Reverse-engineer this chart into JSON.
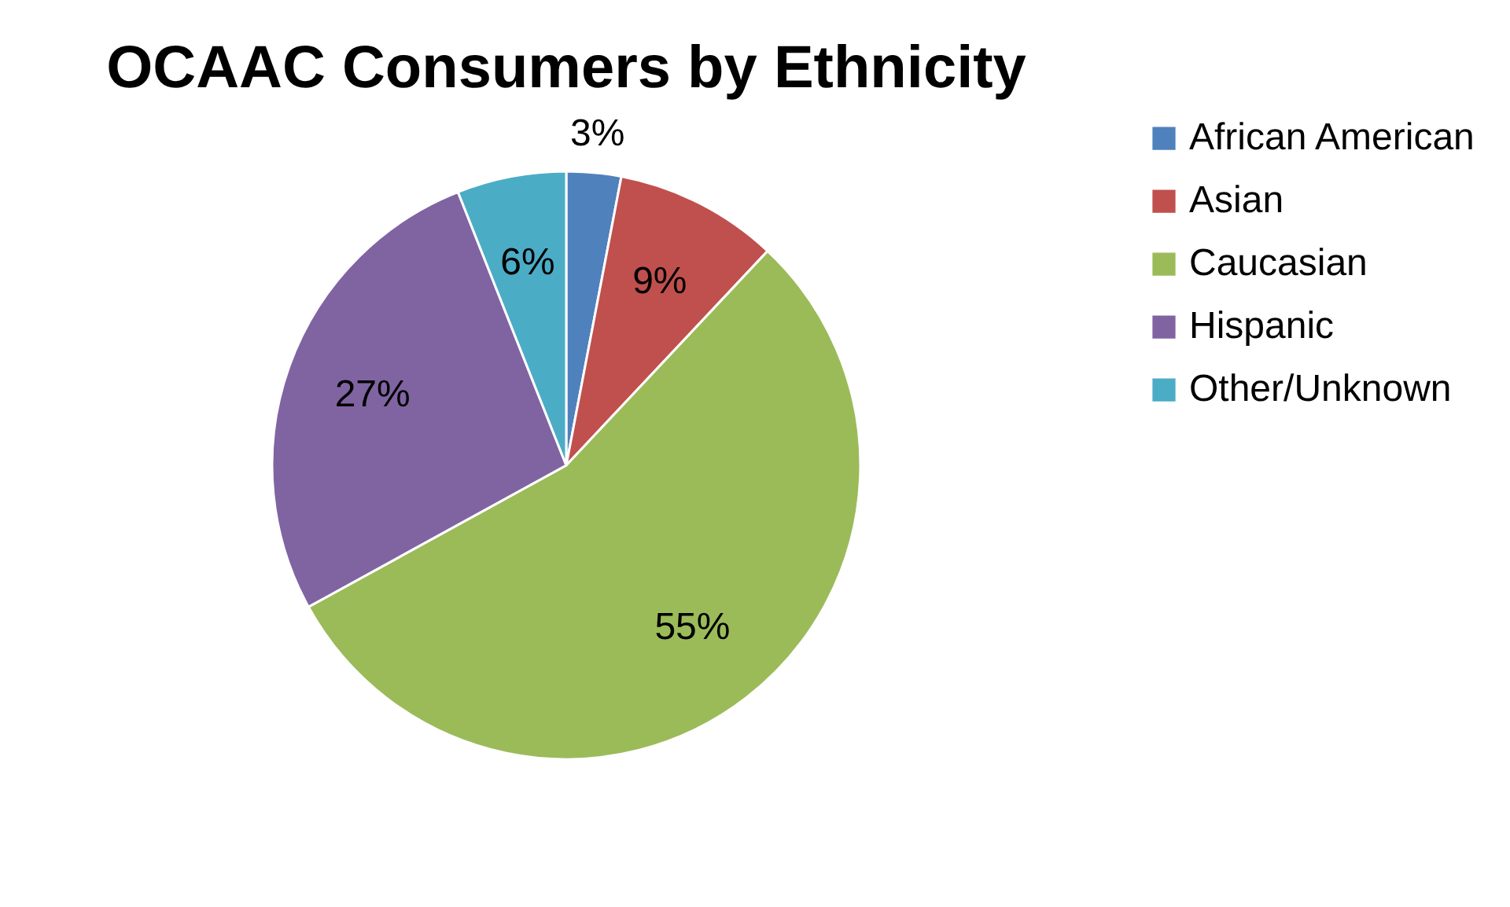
{
  "chart_data": {
    "type": "pie",
    "title": "OCAAC Consumers by Ethnicity",
    "categories": [
      "African American",
      "Asian",
      "Caucasian",
      "Hispanic",
      "Other/Unknown"
    ],
    "values": [
      3,
      9,
      55,
      27,
      6
    ],
    "colors": [
      "#4f81bd",
      "#c0504d",
      "#9bbb59",
      "#8064a2",
      "#4bacc6"
    ],
    "value_labels": [
      "3%",
      "9%",
      "55%",
      "27%",
      "6%"
    ],
    "legend": "right"
  }
}
